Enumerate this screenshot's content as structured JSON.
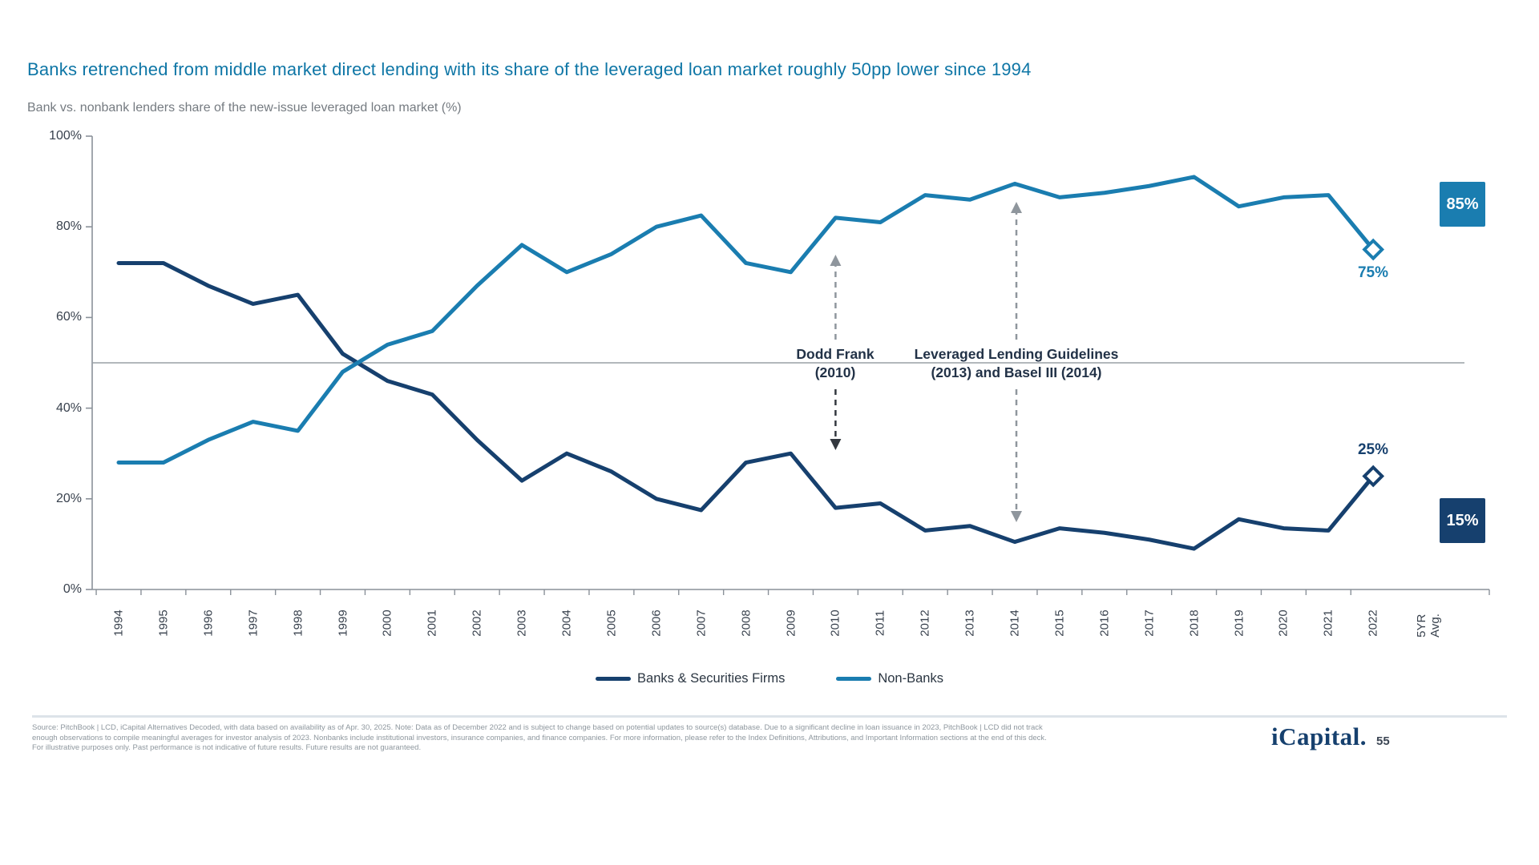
{
  "page": {
    "title": "Banks retrenched from middle market direct lending with its share of the leveraged loan market roughly 50pp lower since 1994",
    "subtitle": "Bank vs. nonbank lenders share of the new-issue leveraged loan market (%)",
    "logo_text": "iCapital.",
    "page_number": "55"
  },
  "chart_data": {
    "type": "line",
    "title": "Bank vs. nonbank lenders share of the new-issue leveraged loan market (%)",
    "categories": [
      1994,
      1995,
      1996,
      1997,
      1998,
      1999,
      2000,
      2001,
      2002,
      2003,
      2004,
      2005,
      2006,
      2007,
      2008,
      2009,
      2010,
      2011,
      2012,
      2013,
      2014,
      2015,
      2016,
      2017,
      2018,
      2019,
      2020,
      2021,
      2022
    ],
    "series": [
      {
        "name": "Banks & Securities Firms",
        "color": "#16406E",
        "values": [
          72,
          72,
          67,
          63,
          65,
          52,
          46,
          43,
          33,
          24,
          30,
          26,
          20,
          17.5,
          28,
          30,
          18,
          19,
          13,
          14,
          10.5,
          13.5,
          12.5,
          11,
          9,
          15.5,
          13.5,
          13,
          25
        ]
      },
      {
        "name": "Non-Banks",
        "color": "#1A7DB0",
        "values": [
          28,
          28,
          33,
          37,
          35,
          48,
          54,
          57,
          67,
          76,
          70,
          74,
          80,
          82.5,
          72,
          70,
          82,
          81,
          87,
          86,
          89.5,
          86.5,
          87.5,
          89,
          91,
          84.5,
          86.5,
          87,
          75
        ]
      }
    ],
    "ylim": [
      0,
      100
    ],
    "ytick_labels": [
      "0%",
      "20%",
      "40%",
      "60%",
      "80%",
      "100%"
    ],
    "grid": "off",
    "legend_position": "bottom-center",
    "reference_line_value": 50,
    "end_labels": {
      "nonbanks": "75%",
      "banks": "25%"
    },
    "avg_column": {
      "label_line1": "5YR",
      "label_line2": "Avg.",
      "nonbanks_value": "85%",
      "banks_value": "15%"
    },
    "annotations": [
      {
        "line1": "Dodd Frank",
        "line2": "(2010)",
        "year": 2010
      },
      {
        "line1": "Leveraged Lending Guidelines",
        "line2": "(2013) and Basel III (2014)",
        "year": 2014
      }
    ]
  },
  "footer": {
    "lines": [
      "Source: PitchBook | LCD, iCapital Alternatives Decoded, with data based on availability as of Apr. 30, 2025. Note: Data as of December 2022 and is subject to change based on potential updates to source(s) database. Due to a significant decline in loan issuance in 2023, PitchBook | LCD did not track",
      "enough observations to compile meaningful averages for investor analysis of 2023. Nonbanks include institutional investors, insurance companies, and finance companies. For more information, please refer to the Index Definitions, Attributions, and Important Information sections at the end of this deck.",
      "For illustrative purposes only. Past performance is not indicative of future results. Future results are not guaranteed."
    ]
  }
}
